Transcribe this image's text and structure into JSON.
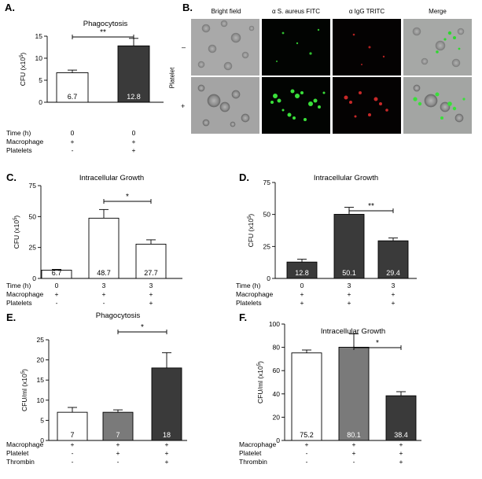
{
  "panel_letters": [
    "A.",
    "B.",
    "C.",
    "D.",
    "E.",
    "F."
  ],
  "microscopy": {
    "columns": [
      "Bright field",
      "α S. aureus FITC",
      "α IgG TRITC",
      "Merge"
    ],
    "row_group_label": "Platelet",
    "row_signs": [
      "–",
      "+"
    ]
  },
  "chart_data": [
    {
      "id": "A",
      "type": "bar",
      "title": "Phagocytosis",
      "ylabel": "CFU (x10^5)",
      "ylim": [
        0,
        15
      ],
      "yticks": [
        0,
        5,
        10,
        15
      ],
      "categories": [
        "1",
        "2"
      ],
      "values": [
        6.7,
        12.8
      ],
      "errors": [
        0.6,
        1.7
      ],
      "bar_labels": [
        "6.7",
        "12.8"
      ],
      "bar_colors": [
        "#ffffff",
        "#3a3a3a"
      ],
      "significance": {
        "from": 0,
        "to": 1,
        "label": "**"
      },
      "conditions": [
        {
          "label": "Time (h)",
          "marks": [
            "0",
            "0"
          ]
        },
        {
          "label": "Macrophage",
          "marks": [
            "+",
            "+"
          ]
        },
        {
          "label": "Platelets",
          "marks": [
            "-",
            "+"
          ]
        }
      ]
    },
    {
      "id": "C",
      "type": "bar",
      "title": "Intracellular Growth",
      "ylabel": "CFU (x10^5)",
      "ylim": [
        0,
        75
      ],
      "yticks": [
        0,
        25,
        50,
        75
      ],
      "categories": [
        "1",
        "2",
        "3"
      ],
      "values": [
        6.7,
        48.7,
        27.7
      ],
      "errors": [
        0.6,
        7,
        3.5
      ],
      "bar_labels": [
        "6.7",
        "48.7",
        "27.7"
      ],
      "bar_colors": [
        "#ffffff",
        "#ffffff",
        "#ffffff"
      ],
      "significance": {
        "from": 1,
        "to": 2,
        "label": "*"
      },
      "conditions": [
        {
          "label": "Time (h)",
          "marks": [
            "0",
            "3",
            "3"
          ]
        },
        {
          "label": "Macrophage",
          "marks": [
            "+",
            "+",
            "+"
          ]
        },
        {
          "label": "Platelets",
          "marks": [
            "-",
            "-",
            "+"
          ]
        }
      ]
    },
    {
      "id": "D",
      "type": "bar",
      "title": "Intracellular Growth",
      "ylabel": "CFU (x10^5)",
      "ylim": [
        0,
        75
      ],
      "yticks": [
        0,
        25,
        50,
        75
      ],
      "categories": [
        "1",
        "2",
        "3"
      ],
      "values": [
        12.8,
        50.1,
        29.4
      ],
      "errors": [
        2.2,
        5.5,
        2.2
      ],
      "bar_labels": [
        "12.8",
        "50.1",
        "29.4"
      ],
      "bar_colors": [
        "#3a3a3a",
        "#3a3a3a",
        "#3a3a3a"
      ],
      "significance": {
        "from": 1,
        "to": 2,
        "label": "**"
      },
      "conditions": [
        {
          "label": "Time (h)",
          "marks": [
            "0",
            "3",
            "3"
          ]
        },
        {
          "label": "Macrophage",
          "marks": [
            "+",
            "+",
            "+"
          ]
        },
        {
          "label": "Platelets",
          "marks": [
            "+",
            "+",
            "+"
          ]
        }
      ]
    },
    {
      "id": "E",
      "type": "bar",
      "title": "Phagocytosis",
      "ylabel": "CFU/ml (x10^5)",
      "ylim": [
        0,
        25
      ],
      "yticks": [
        0,
        5,
        10,
        15,
        20,
        25
      ],
      "categories": [
        "1",
        "2",
        "3"
      ],
      "values": [
        7,
        7,
        18
      ],
      "errors": [
        1.2,
        0.6,
        3.8
      ],
      "bar_labels": [
        "7",
        "7",
        "18"
      ],
      "bar_colors": [
        "#ffffff",
        "#7a7a7a",
        "#3a3a3a"
      ],
      "significance": {
        "from": 1,
        "to": 2,
        "label": "*"
      },
      "conditions": [
        {
          "label": "Macrophage",
          "marks": [
            "+",
            "+",
            "+"
          ]
        },
        {
          "label": "Platelet",
          "marks": [
            "-",
            "+",
            "+"
          ]
        },
        {
          "label": "Thrombin",
          "marks": [
            "-",
            "-",
            "+"
          ]
        }
      ]
    },
    {
      "id": "F",
      "type": "bar",
      "title": "Intracellular Growth",
      "ylabel": "CFU/ml (x10^5)",
      "ylim": [
        0,
        100
      ],
      "yticks": [
        0,
        20,
        40,
        60,
        80,
        100
      ],
      "categories": [
        "1",
        "2",
        "3"
      ],
      "values": [
        75.2,
        80.1,
        38.4
      ],
      "errors": [
        2.5,
        11.5,
        3.5
      ],
      "bar_labels": [
        "75.2",
        "80.1",
        "38.4"
      ],
      "bar_colors": [
        "#ffffff",
        "#7a7a7a",
        "#3a3a3a"
      ],
      "significance": {
        "from": 1,
        "to": 2,
        "label": "*"
      },
      "conditions": [
        {
          "label": "Macrophage",
          "marks": [
            "+",
            "+",
            "+"
          ]
        },
        {
          "label": "Platelet",
          "marks": [
            "-",
            "+",
            "+"
          ]
        },
        {
          "label": "Thrombin",
          "marks": [
            "-",
            "-",
            "+"
          ]
        }
      ]
    }
  ]
}
